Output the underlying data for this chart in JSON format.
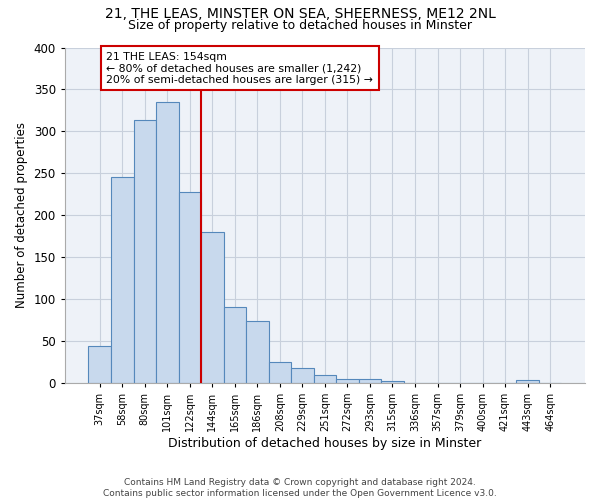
{
  "title1": "21, THE LEAS, MINSTER ON SEA, SHEERNESS, ME12 2NL",
  "title2": "Size of property relative to detached houses in Minster",
  "xlabel": "Distribution of detached houses by size in Minster",
  "ylabel": "Number of detached properties",
  "categories": [
    "37sqm",
    "58sqm",
    "80sqm",
    "101sqm",
    "122sqm",
    "144sqm",
    "165sqm",
    "186sqm",
    "208sqm",
    "229sqm",
    "251sqm",
    "272sqm",
    "293sqm",
    "315sqm",
    "336sqm",
    "357sqm",
    "379sqm",
    "400sqm",
    "421sqm",
    "443sqm",
    "464sqm"
  ],
  "values": [
    44,
    246,
    313,
    335,
    228,
    180,
    90,
    74,
    25,
    18,
    9,
    5,
    5,
    2,
    0,
    0,
    0,
    0,
    0,
    3,
    0
  ],
  "bar_color": "#c8d9ed",
  "bar_edge_color": "#5588bb",
  "vline_color": "#cc0000",
  "vline_x": 4.5,
  "annotation_line1": "21 THE LEAS: 154sqm",
  "annotation_line2": "← 80% of detached houses are smaller (1,242)",
  "annotation_line3": "20% of semi-detached houses are larger (315) →",
  "annotation_box_fc": "#ffffff",
  "annotation_box_ec": "#cc0000",
  "grid_color": "#c8d0dc",
  "bg_color": "#eef2f8",
  "ylim": [
    0,
    400
  ],
  "yticks": [
    0,
    50,
    100,
    150,
    200,
    250,
    300,
    350,
    400
  ],
  "footer1": "Contains HM Land Registry data © Crown copyright and database right 2024.",
  "footer2": "Contains public sector information licensed under the Open Government Licence v3.0."
}
